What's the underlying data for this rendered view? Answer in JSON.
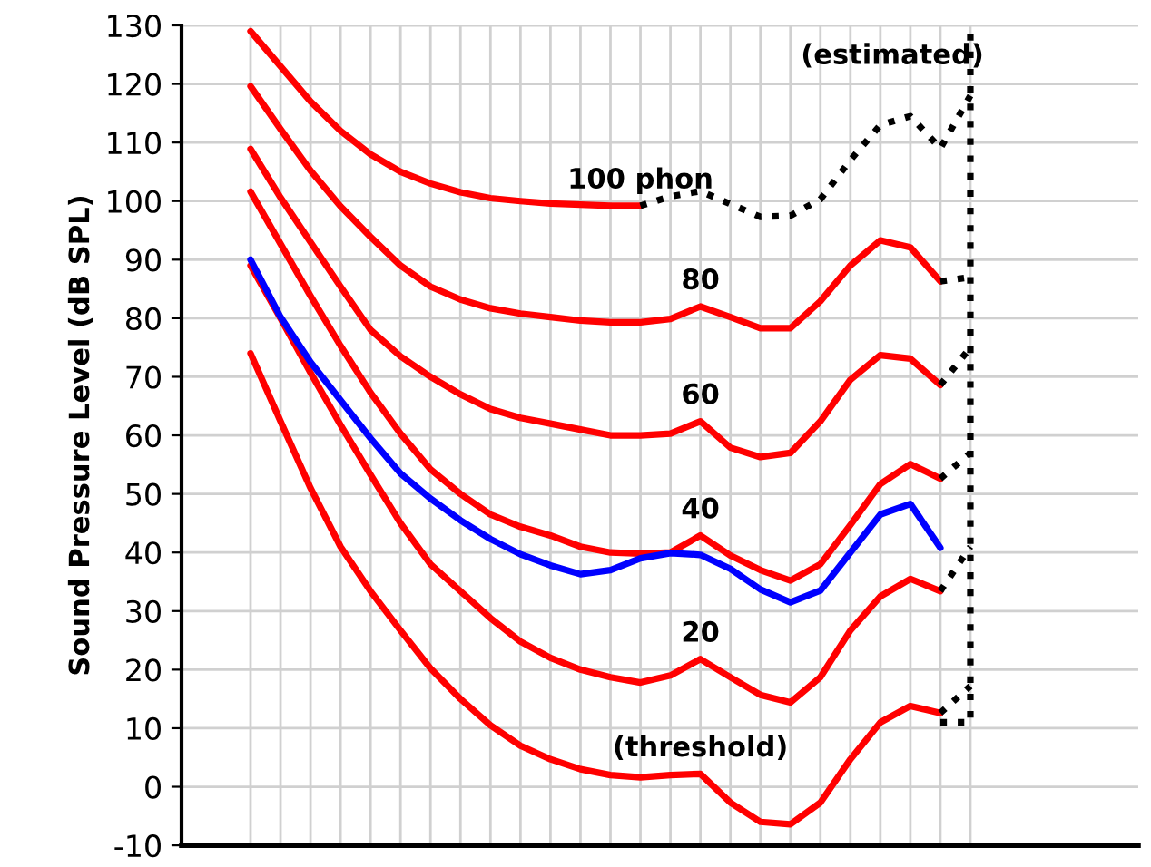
{
  "chart_data": {
    "type": "line",
    "ylabel": "Sound Pressure Level (dB SPL)",
    "categories": [
      null,
      null,
      null,
      null,
      null,
      null,
      null,
      null,
      null,
      null,
      null,
      null,
      null,
      null,
      null,
      null,
      null,
      null,
      null,
      null,
      null,
      null,
      null,
      null,
      null
    ],
    "ylim": [
      -10,
      130
    ],
    "yticks": [
      -10,
      0,
      10,
      20,
      30,
      40,
      50,
      60,
      70,
      80,
      90,
      100,
      110,
      120,
      130
    ],
    "grid": true,
    "legend": false,
    "tick_labels": "y",
    "line_style": "solid",
    "marker": "none",
    "series": [
      {
        "name": "(threshold)",
        "color": "#ff0000",
        "values": [
          74,
          62.4,
          51,
          41,
          33.4,
          26.7,
          20.2,
          15,
          10.5,
          7,
          4.7,
          3,
          2,
          1.6,
          2,
          2.2,
          -2.7,
          -6,
          -6.4,
          -2.7,
          4.7,
          11,
          13.8,
          12.6,
          null
        ]
      },
      {
        "name": "20",
        "color": "#ff0000",
        "values": [
          89,
          80,
          70.7,
          61.8,
          53.3,
          45,
          38,
          33.4,
          28.8,
          24.8,
          22,
          20,
          18.7,
          17.8,
          19,
          21.8,
          18.7,
          15.7,
          14.4,
          18.7,
          26.7,
          32.5,
          35.5,
          33.4,
          null
        ]
      },
      {
        "name": "40",
        "color": "#ff0000",
        "values": [
          101.6,
          92.7,
          83.8,
          75.3,
          67.3,
          60.3,
          54.2,
          50,
          46.5,
          44.4,
          42.9,
          41,
          40,
          39.8,
          40,
          42.9,
          39.5,
          37,
          35.2,
          38,
          44.7,
          51.7,
          55.1,
          52.6,
          null
        ]
      },
      {
        "name": "60",
        "color": "#ff0000",
        "values": [
          108.9,
          100.6,
          93,
          85.4,
          78,
          73.5,
          70,
          67,
          64.5,
          63,
          62,
          61,
          60,
          60,
          60.3,
          62.4,
          57.9,
          56.3,
          57,
          62.4,
          69.5,
          73.7,
          73.1,
          68.6,
          null
        ]
      },
      {
        "name": "80",
        "color": "#ff0000",
        "values": [
          119.6,
          112.3,
          105.2,
          99.1,
          93.9,
          89,
          85.4,
          83.2,
          81.7,
          80.8,
          80.2,
          79.6,
          79.3,
          79.3,
          79.9,
          82,
          80.2,
          78.3,
          78.3,
          82.9,
          89,
          93.3,
          92.1,
          86.3,
          null
        ]
      },
      {
        "name": "100 phon",
        "color": "#ff0000",
        "values": [
          129,
          123,
          117,
          112,
          108,
          105,
          103,
          101.5,
          100.5,
          100,
          99.6,
          99.4,
          99.2,
          99.2,
          null,
          null,
          null,
          null,
          null,
          null,
          null,
          null,
          null,
          null,
          null
        ]
      },
      {
        "color": "#0000ff",
        "values": [
          90,
          80.2,
          72.5,
          66,
          59.5,
          53.5,
          49.2,
          45.5,
          42.3,
          39.7,
          37.8,
          36.3,
          37,
          39,
          39.9,
          39.6,
          37.2,
          33.7,
          31.5,
          33.5,
          40,
          46.5,
          48.3,
          40.8,
          null
        ]
      },
      {
        "color": "#000000",
        "line_style": "dotted",
        "values": [
          null,
          null,
          null,
          null,
          null,
          null,
          null,
          null,
          null,
          null,
          null,
          null,
          null,
          null,
          null,
          null,
          null,
          null,
          null,
          null,
          null,
          null,
          null,
          12.6,
          17.2
        ]
      },
      {
        "color": "#000000",
        "line_style": "dotted",
        "values": [
          null,
          null,
          null,
          null,
          null,
          null,
          null,
          null,
          null,
          null,
          null,
          null,
          null,
          null,
          null,
          null,
          null,
          null,
          null,
          null,
          null,
          null,
          null,
          33.4,
          41
        ]
      },
      {
        "color": "#000000",
        "line_style": "dotted",
        "values": [
          null,
          null,
          null,
          null,
          null,
          null,
          null,
          null,
          null,
          null,
          null,
          null,
          null,
          null,
          null,
          null,
          null,
          null,
          null,
          null,
          null,
          null,
          null,
          52.6,
          57
        ]
      },
      {
        "color": "#000000",
        "line_style": "dotted",
        "values": [
          null,
          null,
          null,
          null,
          null,
          null,
          null,
          null,
          null,
          null,
          null,
          null,
          null,
          null,
          null,
          null,
          null,
          null,
          null,
          null,
          null,
          null,
          null,
          68.6,
          75
        ]
      },
      {
        "color": "#000000",
        "line_style": "dotted",
        "values": [
          null,
          null,
          null,
          null,
          null,
          null,
          null,
          null,
          null,
          null,
          null,
          null,
          null,
          null,
          null,
          null,
          null,
          null,
          null,
          null,
          null,
          null,
          null,
          86.3,
          87
        ]
      },
      {
        "color": "#000000",
        "line_style": "dotted",
        "values": [
          null,
          null,
          null,
          null,
          null,
          null,
          null,
          null,
          null,
          null,
          null,
          null,
          null,
          99.2,
          100.8,
          101.7,
          99.5,
          97.3,
          97.5,
          100.3,
          107,
          113,
          114.5,
          109,
          118
        ]
      },
      {
        "name": "(estimated)",
        "type": "step",
        "color": "#000000",
        "line_style": "dotted",
        "values": [
          null,
          null,
          null,
          null,
          null,
          null,
          null,
          null,
          null,
          null,
          null,
          null,
          null,
          null,
          null,
          null,
          null,
          null,
          null,
          null,
          null,
          null,
          null,
          11,
          130
        ]
      }
    ]
  }
}
